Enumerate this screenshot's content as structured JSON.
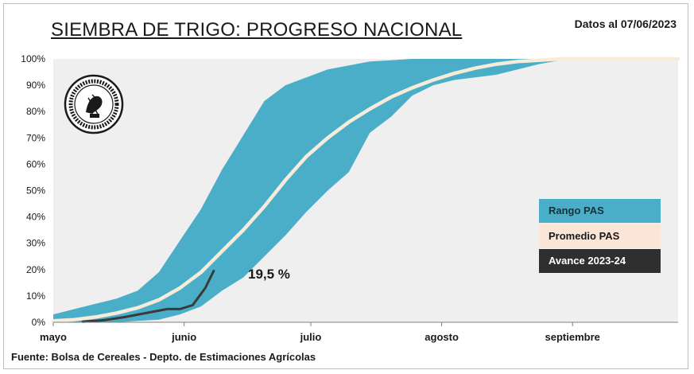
{
  "header": {
    "title": "SIEMBRA DE TRIGO: PROGRESO NACIONAL",
    "date": "Datos al 07/06/2023"
  },
  "footer": {
    "source": "Fuente: Bolsa de Cereales - Depto. de Estimaciones Agrícolas"
  },
  "annotation": {
    "current_value": "19,5 %"
  },
  "legend": {
    "range": "Rango PAS",
    "average": "Promedio PAS",
    "current": "Avance 2023-24"
  },
  "seal": {
    "text": "Comercio · et · Labore · Bolsa de Cereales · Buenos Aires · 1854"
  },
  "colors": {
    "plot_bg": "#efefef",
    "range": "#4baec9",
    "average": "#f7ecd9",
    "current": "#3a3a3a"
  },
  "chart_data": {
    "type": "area",
    "title": "SIEMBRA DE TRIGO: PROGRESO NACIONAL",
    "x_unit": "days from 1 May",
    "x_ticks": [
      {
        "label": "mayo",
        "x": 0
      },
      {
        "label": "junio",
        "x": 31
      },
      {
        "label": "julio",
        "x": 61
      },
      {
        "label": "agosto",
        "x": 92
      },
      {
        "label": "septiembre",
        "x": 123
      }
    ],
    "xlim": [
      0,
      148
    ],
    "ylim": [
      0,
      100
    ],
    "y_ticks": [
      "0%",
      "10%",
      "20%",
      "30%",
      "40%",
      "50%",
      "60%",
      "70%",
      "80%",
      "90%",
      "100%"
    ],
    "grid": false,
    "legend_position": "right",
    "series": [
      {
        "name": "Rango PAS",
        "kind": "band",
        "x": [
          0,
          5,
          10,
          15,
          20,
          25,
          30,
          35,
          40,
          45,
          50,
          55,
          60,
          65,
          70,
          75,
          80,
          85,
          90,
          95,
          100,
          105,
          110,
          115,
          120,
          125,
          130,
          135,
          140,
          148
        ],
        "upper": [
          3,
          5,
          7,
          9,
          12,
          19,
          31,
          43,
          58,
          71,
          84,
          90,
          93,
          96,
          97.5,
          99,
          99.5,
          100,
          100,
          100,
          100,
          100,
          100,
          100,
          100,
          100,
          100,
          100,
          100,
          100
        ],
        "lower": [
          0,
          0,
          0,
          0,
          0.5,
          1,
          3,
          6,
          12,
          17,
          25,
          33,
          42,
          50,
          57,
          72,
          78,
          86,
          90,
          92,
          93,
          94,
          96,
          98,
          99.5,
          100,
          100,
          100,
          100,
          100
        ]
      },
      {
        "name": "Promedio PAS",
        "kind": "line",
        "x": [
          0,
          5,
          10,
          15,
          20,
          25,
          30,
          35,
          40,
          45,
          50,
          55,
          60,
          65,
          70,
          75,
          80,
          85,
          90,
          95,
          100,
          105,
          110,
          115,
          120,
          125,
          130,
          135,
          140,
          148
        ],
        "y": [
          0.5,
          1,
          2,
          3.5,
          5.5,
          8.5,
          13,
          19,
          27,
          35,
          44,
          54,
          63,
          70,
          76,
          81,
          85.5,
          89,
          92,
          94.5,
          96.5,
          98,
          99,
          99.5,
          100,
          100,
          100,
          100,
          100,
          100
        ]
      },
      {
        "name": "Avance 2023-24",
        "kind": "line",
        "x": [
          7,
          12,
          17,
          22,
          27,
          30,
          33,
          36,
          38
        ],
        "y": [
          0.2,
          0.8,
          2,
          3.5,
          5,
          5,
          6.5,
          13,
          19.5
        ]
      }
    ]
  }
}
